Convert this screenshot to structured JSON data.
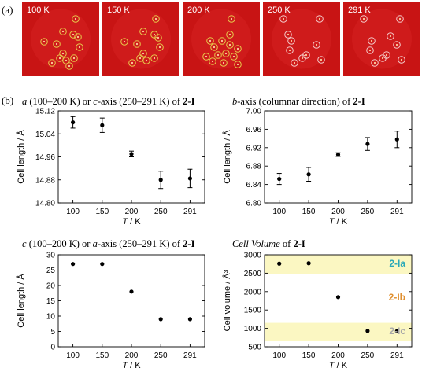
{
  "panel_a_label": "(a)",
  "panel_b_label": "(b)",
  "diffraction_images": [
    {
      "label": "100 K"
    },
    {
      "label": "150 K"
    },
    {
      "label": "200 K"
    },
    {
      "label": "250 K"
    },
    {
      "label": "291 K"
    }
  ],
  "colors": {
    "image_background": "#c81414",
    "spot_circle_low_temp": "#e6c84a",
    "spot_circle_high_temp": "#f2c8c8",
    "band_fill": "#fbf7c2",
    "label_2_1a": "#2aa8b8",
    "label_2_1b": "#e09030",
    "label_2_1c": "#a8a8a8"
  },
  "chart_data": [
    {
      "type": "scatter",
      "title_italic": "a",
      "title_mid": " (100–200 K) or ",
      "title_italic2": "c",
      "title_rest": "-axis (250–291 K) of ",
      "title_bold": "2-I",
      "xlabel_italic": "T",
      "xlabel_rest": " / K",
      "ylabel": "Cell length / Å",
      "x": [
        100,
        150,
        200,
        250,
        291
      ],
      "xticks": [
        "100",
        "150",
        "200",
        "250",
        "291"
      ],
      "y": [
        15.08,
        15.07,
        14.97,
        14.88,
        14.885
      ],
      "yerr": [
        0.02,
        0.025,
        0.01,
        0.03,
        0.032
      ],
      "ylim": [
        14.8,
        15.12
      ],
      "yticks": [
        "14.80",
        "14.88",
        "14.96",
        "15.04",
        "15.12"
      ],
      "error_bars": true
    },
    {
      "type": "scatter",
      "title_italic": "b",
      "title_mid": "-axis (columnar direction) of ",
      "title_italic2": "",
      "title_rest": "",
      "title_bold": "2-I",
      "xlabel_italic": "T",
      "xlabel_rest": " / K",
      "ylabel": "Cell length / Å",
      "x": [
        100,
        150,
        200,
        250,
        291
      ],
      "xticks": [
        "100",
        "150",
        "200",
        "250",
        "291"
      ],
      "y": [
        6.852,
        6.862,
        6.905,
        6.928,
        6.938
      ],
      "yerr": [
        0.012,
        0.015,
        0.004,
        0.014,
        0.018
      ],
      "ylim": [
        6.8,
        7.0
      ],
      "yticks": [
        "6.80",
        "6.84",
        "6.88",
        "6.92",
        "6.96",
        "7.00"
      ],
      "error_bars": true
    },
    {
      "type": "scatter",
      "title_italic": "c",
      "title_mid": " (100–200 K) or ",
      "title_italic2": "a",
      "title_rest": "-axis (250–291 K) of ",
      "title_bold": "2-I",
      "xlabel_italic": "T",
      "xlabel_rest": " / K",
      "ylabel": "Cell length / Å",
      "x": [
        100,
        150,
        200,
        250,
        291
      ],
      "xticks": [
        "100",
        "150",
        "200",
        "250",
        "291"
      ],
      "y": [
        27,
        27,
        18,
        9,
        9
      ],
      "ylim": [
        0,
        30
      ],
      "yticks": [
        "0",
        "5",
        "10",
        "15",
        "20",
        "25",
        "30"
      ],
      "error_bars": false
    },
    {
      "type": "scatter",
      "title_italic": "Cell Volume",
      "title_mid": " of ",
      "title_italic2": "",
      "title_rest": "",
      "title_bold": "2-I",
      "xlabel_italic": "T",
      "xlabel_rest": " / K",
      "ylabel": "Cell volume / Å³",
      "x": [
        100,
        150,
        200,
        250,
        291
      ],
      "xticks": [
        "100",
        "150",
        "200",
        "250",
        "291"
      ],
      "y": [
        2760,
        2770,
        1850,
        930,
        925
      ],
      "ylim": [
        500,
        3000
      ],
      "yticks": [
        "500",
        "1000",
        "1500",
        "2000",
        "2500",
        "3000"
      ],
      "error_bars": false,
      "bands": [
        [
          2470,
          3000
        ],
        [
          650,
          1150
        ]
      ],
      "annotations": [
        {
          "text": "2-Ia",
          "color_key": "label_2_1a",
          "y": 2760
        },
        {
          "text": "2-Ib",
          "color_key": "label_2_1b",
          "y": 1850
        },
        {
          "text": "2-Ic",
          "color_key": "label_2_1c",
          "y": 930
        }
      ]
    }
  ]
}
